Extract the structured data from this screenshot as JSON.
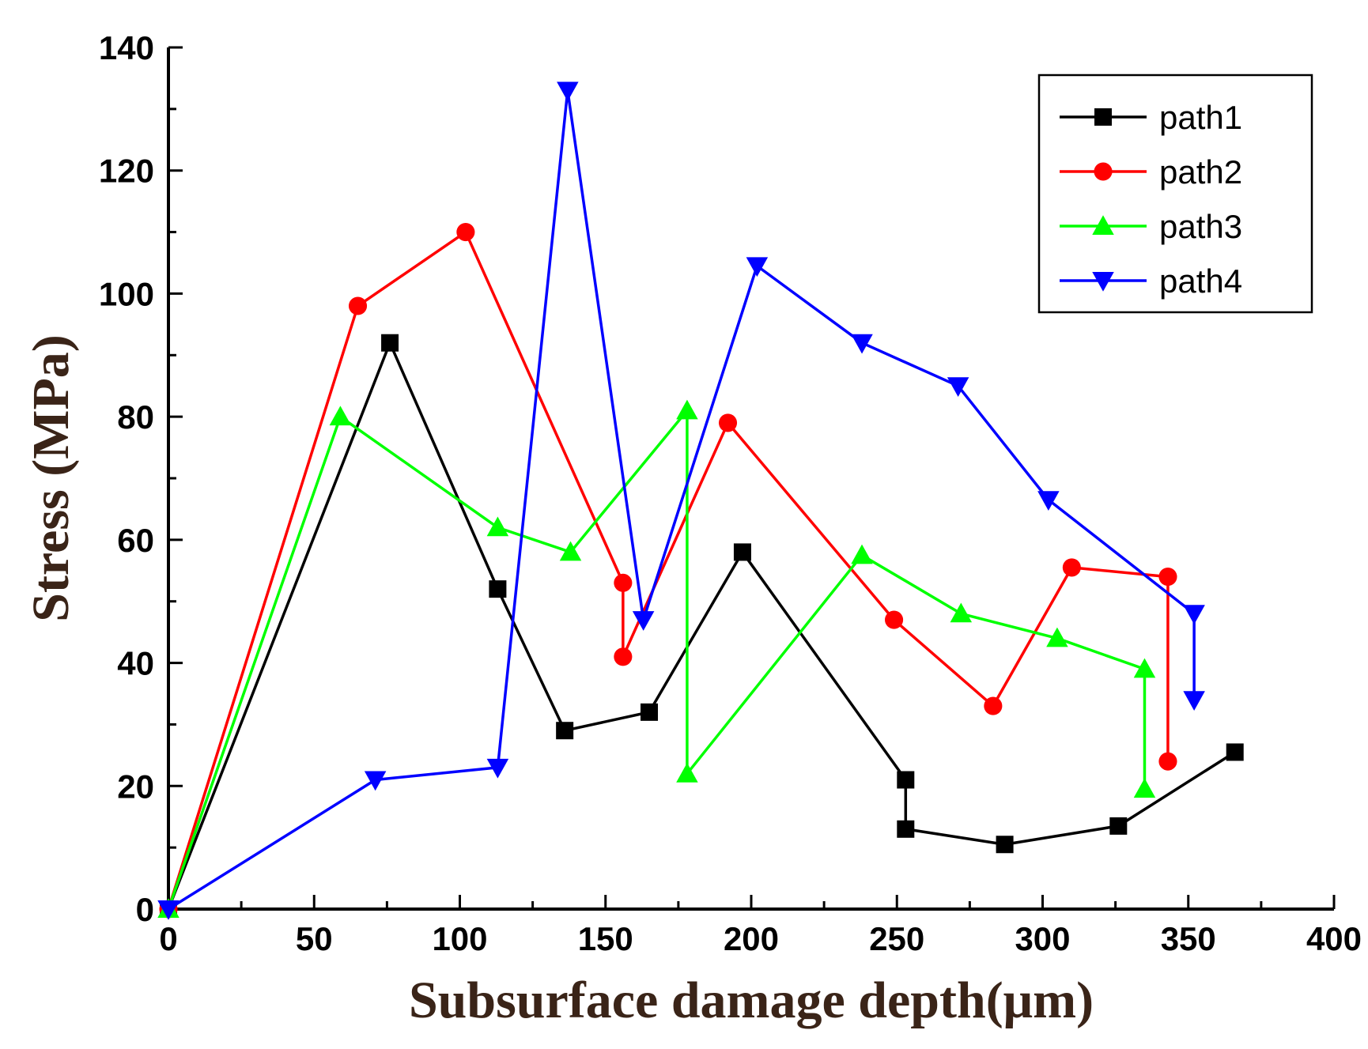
{
  "chart_data": {
    "type": "line",
    "title": "",
    "xlabel": "Subsurface damage depth(μm)",
    "ylabel": "Stress (MPa)",
    "xlim": [
      0,
      400
    ],
    "ylim": [
      0,
      140
    ],
    "x_ticks": [
      0,
      50,
      100,
      150,
      200,
      250,
      300,
      350,
      400
    ],
    "y_ticks": [
      0,
      20,
      40,
      60,
      80,
      100,
      120,
      140
    ],
    "grid": false,
    "legend_position": "top-right",
    "series": [
      {
        "name": "path1",
        "color": "#000000",
        "marker": "square",
        "points": [
          [
            0,
            0
          ],
          [
            76,
            92
          ],
          [
            113,
            52
          ],
          [
            136,
            29
          ],
          [
            165,
            32
          ],
          [
            197,
            58
          ],
          [
            253,
            21
          ],
          [
            253,
            13
          ],
          [
            287,
            10.5
          ],
          [
            326,
            13.5
          ],
          [
            366,
            25.5
          ]
        ]
      },
      {
        "name": "path2",
        "color": "#ff0000",
        "marker": "circle",
        "points": [
          [
            0,
            0
          ],
          [
            65,
            98
          ],
          [
            102,
            110
          ],
          [
            156,
            53
          ],
          [
            156,
            41
          ],
          [
            192,
            79
          ],
          [
            249,
            47
          ],
          [
            283,
            33
          ],
          [
            310,
            55.5
          ],
          [
            343,
            54
          ],
          [
            343,
            24
          ]
        ]
      },
      {
        "name": "path3",
        "color": "#00ff00",
        "marker": "triangle-up",
        "points": [
          [
            0,
            0
          ],
          [
            59,
            80
          ],
          [
            113,
            62
          ],
          [
            138,
            58
          ],
          [
            178,
            81
          ],
          [
            178,
            22
          ],
          [
            238,
            57.5
          ],
          [
            272,
            48
          ],
          [
            305,
            44
          ],
          [
            335,
            39
          ],
          [
            335,
            19.5
          ]
        ]
      },
      {
        "name": "path4",
        "color": "#0000ff",
        "marker": "triangle-down",
        "points": [
          [
            0,
            0
          ],
          [
            71,
            21
          ],
          [
            113,
            23
          ],
          [
            137,
            133
          ],
          [
            163,
            47
          ],
          [
            202,
            104.5
          ],
          [
            238,
            92
          ],
          [
            271,
            85
          ],
          [
            302,
            66.5
          ],
          [
            352,
            48
          ],
          [
            352,
            34
          ]
        ]
      }
    ]
  }
}
